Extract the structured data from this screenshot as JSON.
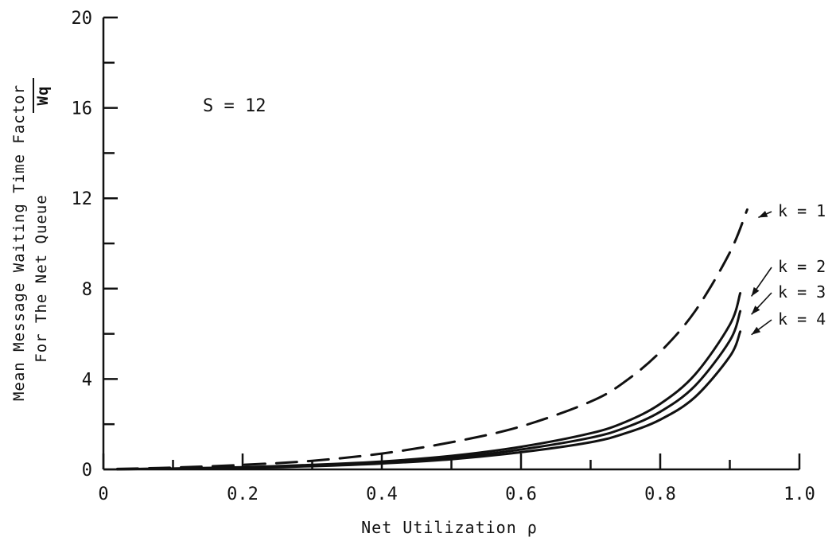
{
  "chart_data": {
    "type": "line",
    "xlabel": "Net Utilization ρ",
    "ylabel_line1": "Mean Message Waiting Time Factor",
    "ylabel_line2": "For The Net Queue",
    "ylabel_symbol": "Wq",
    "annotation": "S = 12",
    "xlim": [
      0,
      1.0
    ],
    "ylim": [
      0,
      20
    ],
    "x_ticks": [
      "0",
      "0.2",
      "0.4",
      "0.6",
      "0.8",
      "1.0"
    ],
    "x_tick_values": [
      0,
      0.2,
      0.4,
      0.6,
      0.8,
      1.0
    ],
    "y_ticks": [
      "0",
      "4",
      "8",
      "12",
      "16",
      "20"
    ],
    "y_tick_values": [
      0,
      4,
      8,
      12,
      16,
      20
    ],
    "grid": false,
    "series": [
      {
        "name": "k = 1",
        "style": "dashed",
        "x": [
          0.02,
          0.1,
          0.2,
          0.3,
          0.4,
          0.5,
          0.6,
          0.7,
          0.75,
          0.8,
          0.85,
          0.9,
          0.925
        ],
        "y": [
          0.02,
          0.08,
          0.2,
          0.38,
          0.7,
          1.2,
          1.9,
          3.0,
          3.9,
          5.2,
          7.0,
          9.6,
          11.5
        ]
      },
      {
        "name": "k = 2",
        "style": "solid",
        "x": [
          0.02,
          0.1,
          0.2,
          0.3,
          0.4,
          0.5,
          0.6,
          0.7,
          0.75,
          0.8,
          0.85,
          0.9,
          0.915
        ],
        "y": [
          0.01,
          0.04,
          0.1,
          0.2,
          0.35,
          0.6,
          1.0,
          1.6,
          2.1,
          2.9,
          4.2,
          6.4,
          7.8
        ]
      },
      {
        "name": "k = 3",
        "style": "solid",
        "x": [
          0.02,
          0.1,
          0.2,
          0.3,
          0.4,
          0.5,
          0.6,
          0.7,
          0.75,
          0.8,
          0.85,
          0.9,
          0.915
        ],
        "y": [
          0.01,
          0.035,
          0.08,
          0.17,
          0.3,
          0.52,
          0.88,
          1.4,
          1.85,
          2.55,
          3.7,
          5.7,
          7.0
        ]
      },
      {
        "name": "k = 4",
        "style": "solid",
        "x": [
          0.02,
          0.1,
          0.2,
          0.3,
          0.4,
          0.5,
          0.6,
          0.7,
          0.75,
          0.8,
          0.85,
          0.9,
          0.915
        ],
        "y": [
          0.01,
          0.03,
          0.07,
          0.14,
          0.26,
          0.45,
          0.76,
          1.2,
          1.6,
          2.2,
          3.2,
          5.0,
          6.1
        ]
      }
    ],
    "legend_labels": [
      "k = 1",
      "k = 2",
      "k = 3",
      "k = 4"
    ]
  }
}
